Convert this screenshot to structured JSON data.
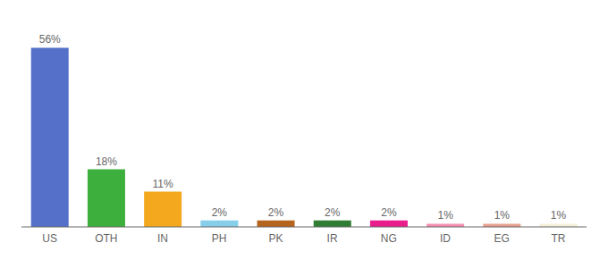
{
  "chart_data": {
    "type": "bar",
    "categories": [
      "US",
      "OTH",
      "IN",
      "PH",
      "PK",
      "IR",
      "NG",
      "ID",
      "EG",
      "TR"
    ],
    "values": [
      56,
      18,
      11,
      2,
      2,
      2,
      2,
      1,
      1,
      1
    ],
    "value_labels": [
      "56%",
      "18%",
      "11%",
      "2%",
      "2%",
      "2%",
      "2%",
      "1%",
      "1%",
      "1%"
    ],
    "colors": [
      "#5470c9",
      "#3daf3d",
      "#f4a81d",
      "#87ceeb",
      "#b5651d",
      "#2e7d32",
      "#e91e8c",
      "#f48fb1",
      "#e8a090",
      "#f5f0d8"
    ],
    "ylim": [
      0,
      62
    ],
    "data_labels": true,
    "tick_labels": "x"
  }
}
